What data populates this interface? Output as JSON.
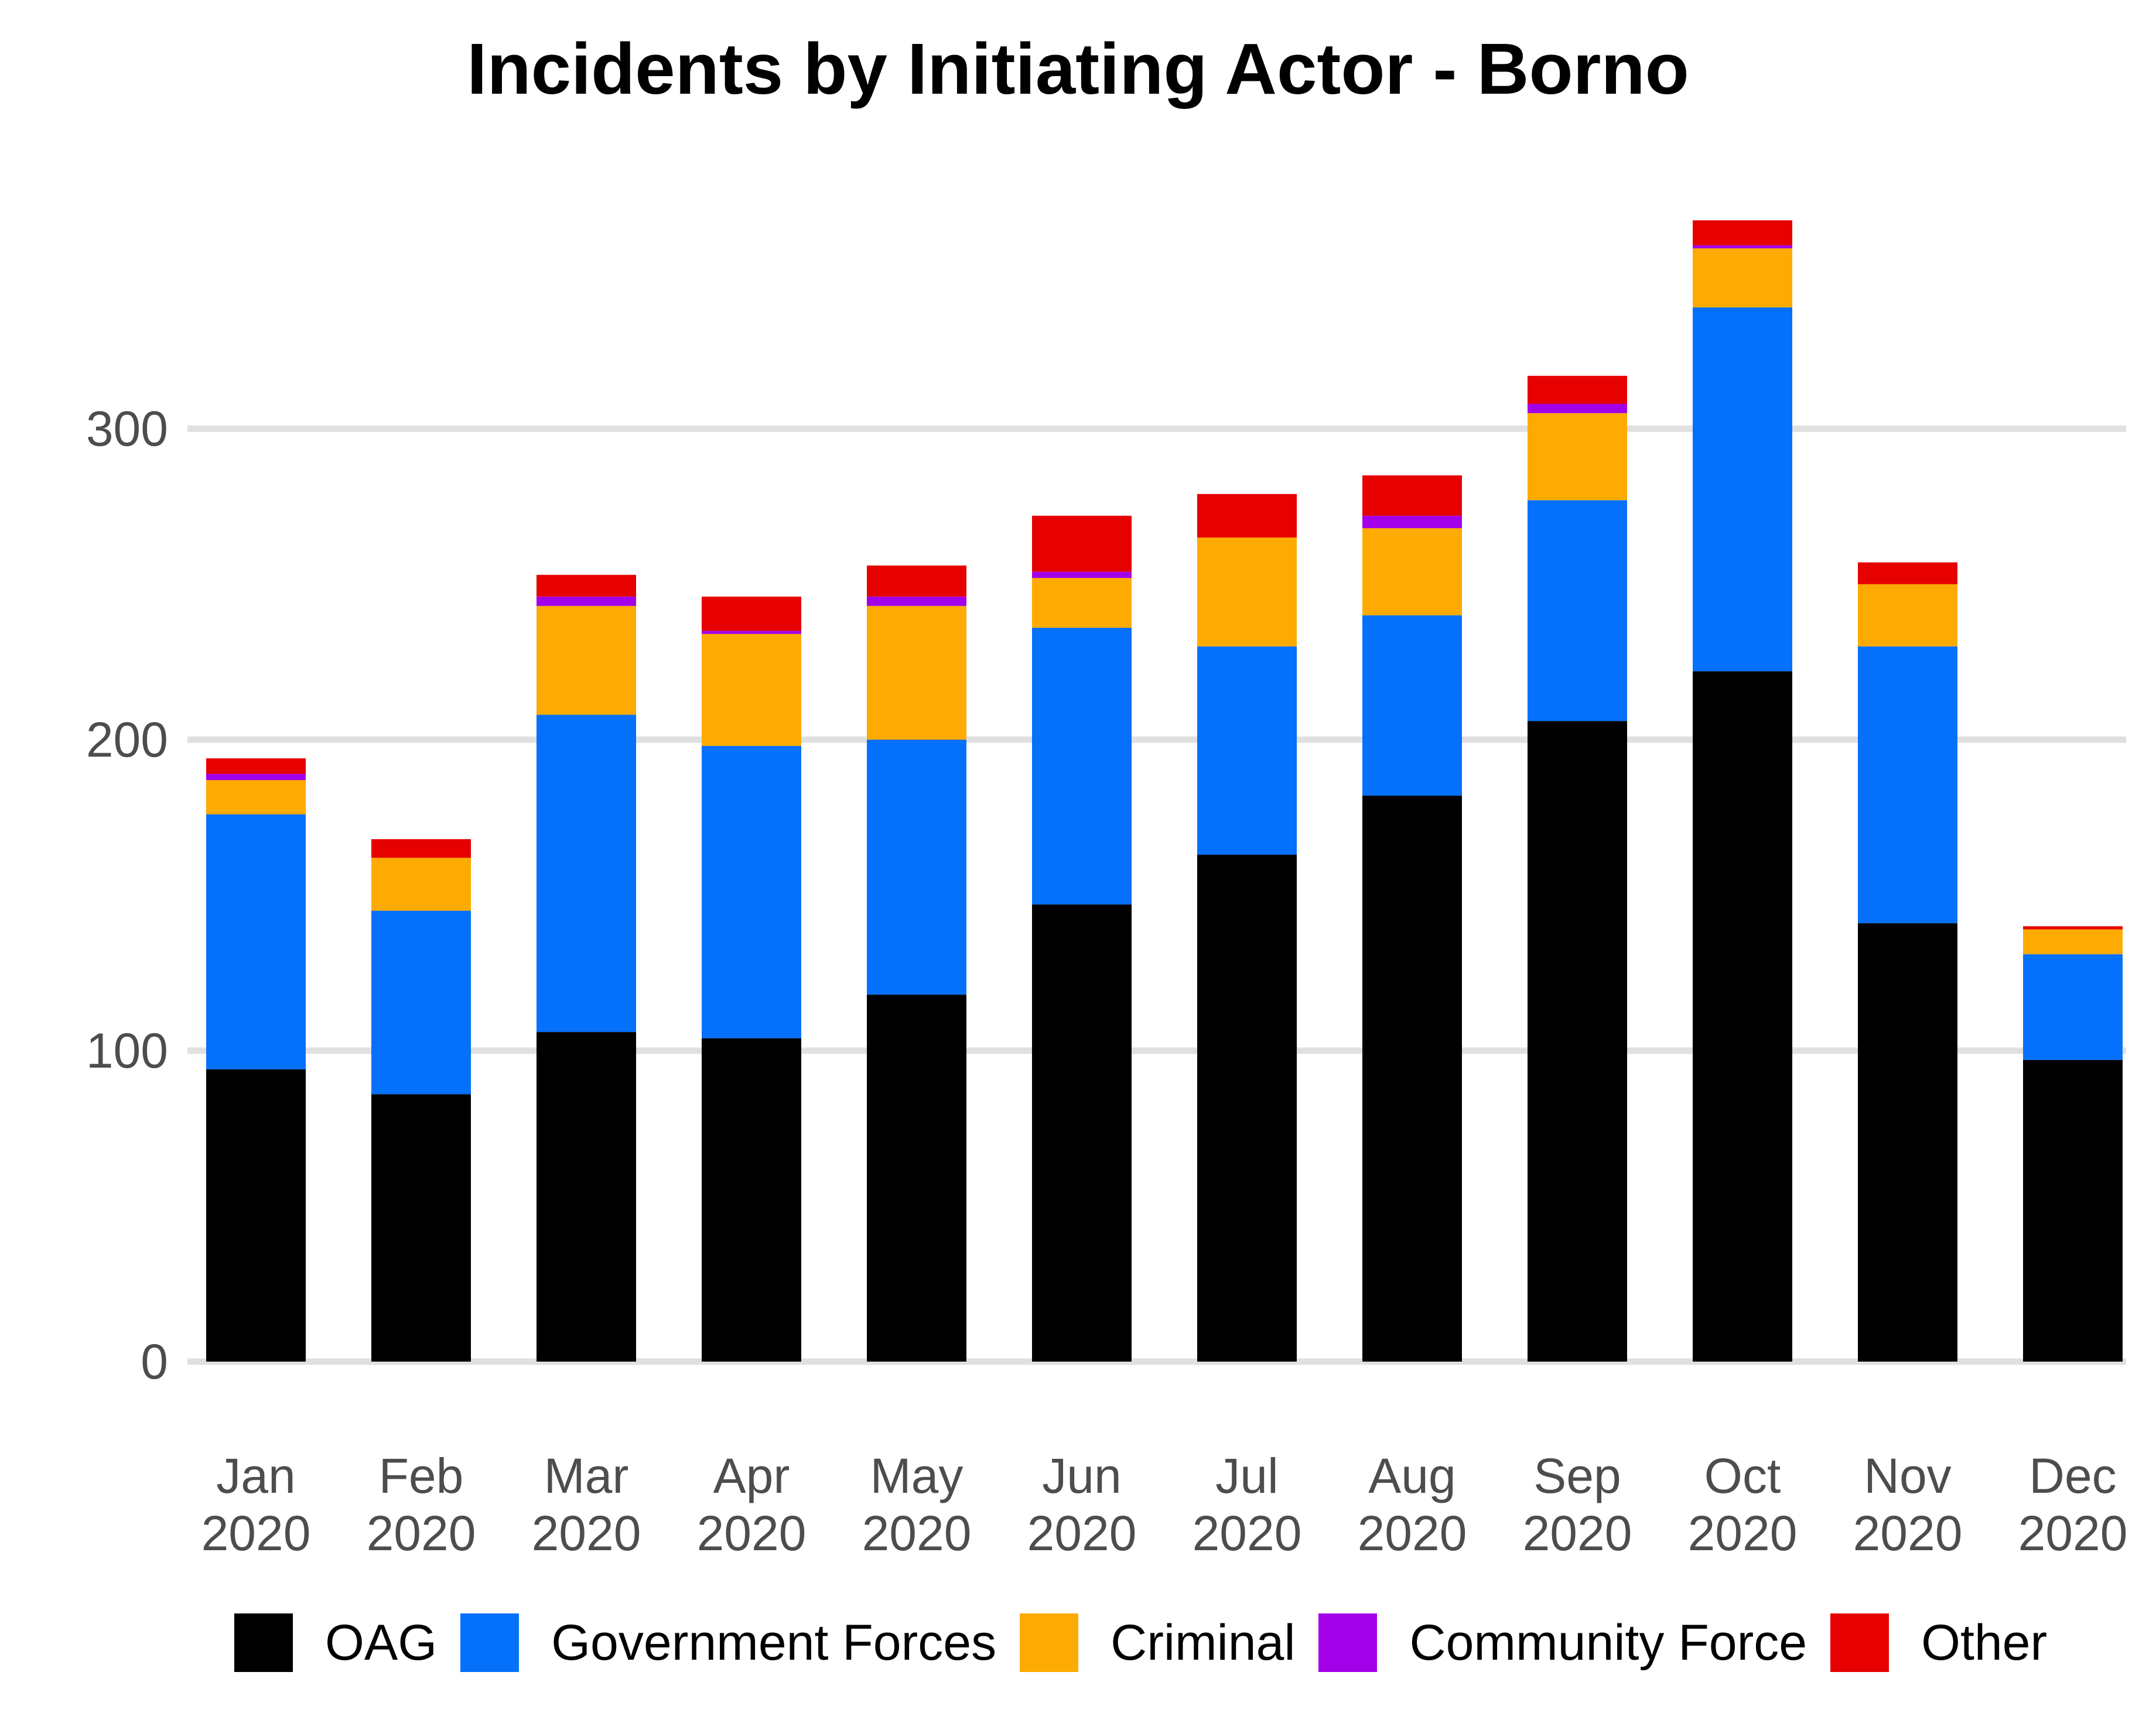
{
  "chart_data": {
    "type": "bar",
    "stacked": true,
    "title": "Incidents by Initiating Actor - Borno",
    "xlabel": "",
    "ylabel": "",
    "ylim": [
      0,
      370
    ],
    "yticks": [
      0,
      100,
      200,
      300
    ],
    "grid": "horizontal",
    "legend_position": "bottom",
    "categories": [
      [
        "Jan",
        "2020"
      ],
      [
        "Feb",
        "2020"
      ],
      [
        "Mar",
        "2020"
      ],
      [
        "Apr",
        "2020"
      ],
      [
        "May",
        "2020"
      ],
      [
        "Jun",
        "2020"
      ],
      [
        "Jul",
        "2020"
      ],
      [
        "Aug",
        "2020"
      ],
      [
        "Sep",
        "2020"
      ],
      [
        "Oct",
        "2020"
      ],
      [
        "Nov",
        "2020"
      ],
      [
        "Dec",
        "2020"
      ]
    ],
    "series": [
      {
        "name": "OAG",
        "color": "#000000",
        "values": [
          94,
          86,
          106,
          104,
          118,
          147,
          163,
          182,
          206,
          222,
          141,
          97
        ]
      },
      {
        "name": "Government Forces",
        "color": "#0570fa",
        "values": [
          82,
          59,
          102,
          94,
          82,
          89,
          67,
          58,
          71,
          117,
          89,
          34
        ]
      },
      {
        "name": "Criminal",
        "color": "#fdab02",
        "values": [
          11,
          17,
          35,
          36,
          43,
          16,
          35,
          28,
          28,
          19,
          20,
          8
        ]
      },
      {
        "name": "Community Force",
        "color": "#a200e8",
        "values": [
          2,
          0,
          3,
          1,
          3,
          2,
          0,
          4,
          3,
          1,
          0,
          0
        ]
      },
      {
        "name": "Other",
        "color": "#e60000",
        "values": [
          5,
          6,
          7,
          11,
          10,
          18,
          14,
          13,
          9,
          8,
          7,
          1
        ]
      }
    ]
  }
}
